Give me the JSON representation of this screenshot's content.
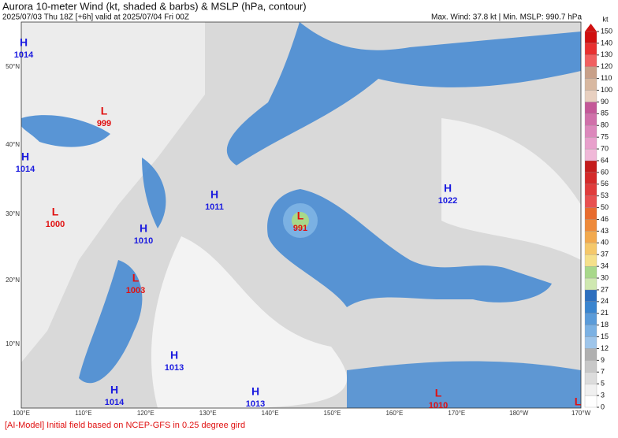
{
  "header": {
    "title": "Aurora 10-meter Wind (kt, shaded & barbs) & MSLP (hPa, contour)",
    "subtitle": "2025/07/03 Thu 18Z [+6h] valid at 2025/07/04 Fri 00Z",
    "stats": "Max. Wind: 37.8 kt | Min. MSLP: 990.7 hPa"
  },
  "map": {
    "lat_labels": [
      "50°N",
      "40°N",
      "30°N",
      "20°N",
      "10°N"
    ],
    "lon_labels": [
      "100°E",
      "110°E",
      "120°E",
      "130°E",
      "140°E",
      "150°E",
      "160°E",
      "170°E",
      "180°W",
      "170°W"
    ],
    "centers": [
      {
        "symbol": "H",
        "value": 1014
      },
      {
        "symbol": "L",
        "value": 999
      },
      {
        "symbol": "H",
        "value": 1014
      },
      {
        "symbol": "L",
        "value": 1000
      },
      {
        "symbol": "H",
        "value": 1011
      },
      {
        "symbol": "H",
        "value": 1010
      },
      {
        "symbol": "L",
        "value": 991
      },
      {
        "symbol": "H",
        "value": 1022
      },
      {
        "symbol": "L",
        "value": 1003
      },
      {
        "symbol": "H",
        "value": 1013
      },
      {
        "symbol": "H",
        "value": 1014
      },
      {
        "symbol": "H",
        "value": 1013
      },
      {
        "symbol": "L",
        "value": 1010
      },
      {
        "symbol": "L"
      }
    ]
  },
  "colorbar": {
    "unit": "kt",
    "levels": [
      0,
      3,
      5,
      7,
      9,
      12,
      15,
      18,
      21,
      24,
      27,
      30,
      34,
      37,
      40,
      43,
      46,
      50,
      53,
      56,
      60,
      64,
      70,
      75,
      80,
      85,
      90,
      100,
      110,
      120,
      130,
      140,
      150
    ],
    "colors": [
      "#ffffff",
      "#f0f0f0",
      "#dcdcdc",
      "#c8c8c8",
      "#b0b0b0",
      "#9ec5ea",
      "#7bb1e3",
      "#5a9bd9",
      "#3a85cf",
      "#2d6fbf",
      "#cfe8b0",
      "#a8d88a",
      "#f5e08a",
      "#f5c86a",
      "#f2a94d",
      "#ee8a3a",
      "#e86c2e",
      "#e85050",
      "#e03c3c",
      "#d42a2a",
      "#c41c1c",
      "#f0b8d8",
      "#e8a0cc",
      "#dc88bc",
      "#d070aa",
      "#c45898",
      "#e8d0c0",
      "#d8b8a0",
      "#c8a088",
      "#f06060",
      "#e83030",
      "#d01010"
    ]
  },
  "footer": "[AI-Model] Initial field based on NCEP-GFS in 0.25 degree gird"
}
